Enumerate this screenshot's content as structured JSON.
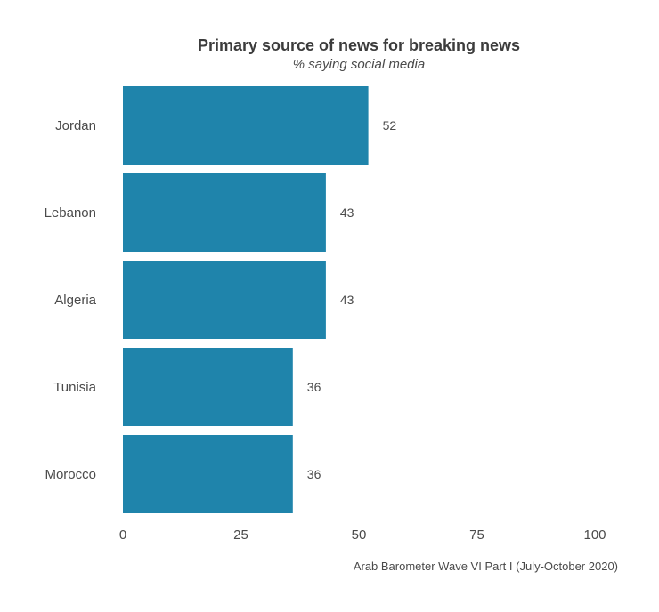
{
  "chart_data": {
    "type": "bar",
    "orientation": "horizontal",
    "title": "Primary source of news for breaking news",
    "subtitle": "% saying social media",
    "categories": [
      "Jordan",
      "Lebanon",
      "Algeria",
      "Tunisia",
      "Morocco"
    ],
    "values": [
      52,
      43,
      43,
      36,
      36
    ],
    "data_labels": [
      "52",
      "43",
      "43",
      "36",
      "36"
    ],
    "xlim": [
      0,
      100
    ],
    "xticks": [
      0,
      25,
      50,
      75,
      100
    ],
    "xtick_labels": [
      "0",
      "25",
      "50",
      "75",
      "100"
    ],
    "xlabel": "",
    "ylabel": "",
    "grid": false,
    "bar_color": "#1f84ab",
    "caption": "Arab Barometer Wave VI Part I (July-October 2020)"
  }
}
